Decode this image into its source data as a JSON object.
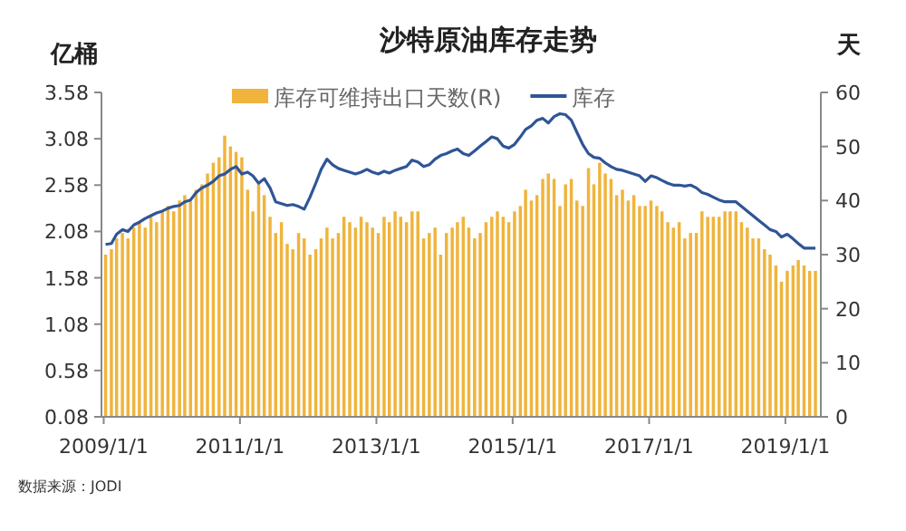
{
  "chart_data": {
    "type": "bar",
    "title": "沙特原油库存走势",
    "ylabel": "亿桶",
    "y2label": "天",
    "x": [
      "2009-01",
      "2009-02",
      "2009-03",
      "2009-04",
      "2009-05",
      "2009-06",
      "2009-07",
      "2009-08",
      "2009-09",
      "2009-10",
      "2009-11",
      "2009-12",
      "2010-01",
      "2010-02",
      "2010-03",
      "2010-04",
      "2010-05",
      "2010-06",
      "2010-07",
      "2010-08",
      "2010-09",
      "2010-10",
      "2010-11",
      "2010-12",
      "2011-01",
      "2011-02",
      "2011-03",
      "2011-04",
      "2011-05",
      "2011-06",
      "2011-07",
      "2011-08",
      "2011-09",
      "2011-10",
      "2011-11",
      "2011-12",
      "2012-01",
      "2012-02",
      "2012-03",
      "2012-04",
      "2012-05",
      "2012-06",
      "2012-07",
      "2012-08",
      "2012-09",
      "2012-10",
      "2012-11",
      "2012-12",
      "2013-01",
      "2013-02",
      "2013-03",
      "2013-04",
      "2013-05",
      "2013-06",
      "2013-07",
      "2013-08",
      "2013-09",
      "2013-10",
      "2013-11",
      "2013-12",
      "2014-01",
      "2014-02",
      "2014-03",
      "2014-04",
      "2014-05",
      "2014-06",
      "2014-07",
      "2014-08",
      "2014-09",
      "2014-10",
      "2014-11",
      "2014-12",
      "2015-01",
      "2015-02",
      "2015-03",
      "2015-04",
      "2015-05",
      "2015-06",
      "2015-07",
      "2015-08",
      "2015-09",
      "2015-10",
      "2015-11",
      "2015-12",
      "2016-01",
      "2016-02",
      "2016-03",
      "2016-04",
      "2016-05",
      "2016-06",
      "2016-07",
      "2016-08",
      "2016-09",
      "2016-10",
      "2016-11",
      "2016-12",
      "2017-01",
      "2017-02",
      "2017-03",
      "2017-04",
      "2017-05",
      "2017-06",
      "2017-07",
      "2017-08",
      "2017-09",
      "2017-10",
      "2017-11",
      "2017-12",
      "2018-01",
      "2018-02",
      "2018-03",
      "2018-04",
      "2018-05",
      "2018-06",
      "2018-07",
      "2018-08",
      "2018-09",
      "2018-10",
      "2018-11",
      "2018-12",
      "2019-01",
      "2019-02",
      "2019-03",
      "2019-04",
      "2019-05",
      "2019-06"
    ],
    "series": [
      {
        "name": "库存可维持出口天数(R)",
        "axis": "y2",
        "color": "#f0b43c",
        "values": [
          30,
          31,
          33,
          34,
          33,
          35,
          36,
          35,
          37,
          36,
          38,
          39,
          38,
          40,
          41,
          40,
          42,
          43,
          45,
          47,
          48,
          52,
          50,
          49,
          48,
          42,
          38,
          43,
          41,
          37,
          34,
          36,
          32,
          31,
          34,
          33,
          30,
          31,
          33,
          35,
          33,
          34,
          37,
          36,
          35,
          37,
          36,
          35,
          34,
          37,
          36,
          38,
          37,
          36,
          38,
          38,
          33,
          34,
          35,
          30,
          34,
          35,
          36,
          37,
          35,
          33,
          34,
          36,
          37,
          38,
          37,
          36,
          38,
          39,
          42,
          40,
          41,
          44,
          45,
          44,
          39,
          43,
          44,
          40,
          39,
          46,
          43,
          47,
          45,
          44,
          41,
          42,
          40,
          41,
          39,
          39,
          40,
          39,
          38,
          36,
          35,
          36,
          33,
          34,
          34,
          38,
          37,
          37,
          37,
          38,
          38,
          38,
          36,
          35,
          33,
          33,
          31,
          30,
          28,
          25,
          27,
          28,
          29,
          28,
          27,
          27
        ]
      },
      {
        "name": "库存",
        "type": "line",
        "color": "#2f5597",
        "values": [
          1.94,
          1.95,
          2.05,
          2.1,
          2.08,
          2.15,
          2.18,
          2.22,
          2.25,
          2.28,
          2.3,
          2.33,
          2.35,
          2.36,
          2.4,
          2.42,
          2.5,
          2.55,
          2.58,
          2.62,
          2.68,
          2.7,
          2.75,
          2.78,
          2.7,
          2.72,
          2.68,
          2.6,
          2.65,
          2.55,
          2.4,
          2.38,
          2.36,
          2.37,
          2.35,
          2.32,
          2.45,
          2.6,
          2.75,
          2.86,
          2.8,
          2.76,
          2.74,
          2.72,
          2.7,
          2.72,
          2.75,
          2.72,
          2.7,
          2.73,
          2.71,
          2.74,
          2.76,
          2.78,
          2.85,
          2.83,
          2.78,
          2.8,
          2.86,
          2.9,
          2.92,
          2.95,
          2.97,
          2.92,
          2.9,
          2.95,
          3.0,
          3.05,
          3.1,
          3.08,
          3.0,
          2.98,
          3.02,
          3.1,
          3.18,
          3.22,
          3.28,
          3.3,
          3.25,
          3.32,
          3.35,
          3.34,
          3.28,
          3.15,
          3.02,
          2.92,
          2.88,
          2.87,
          2.82,
          2.78,
          2.75,
          2.74,
          2.72,
          2.7,
          2.68,
          2.62,
          2.68,
          2.66,
          2.63,
          2.6,
          2.58,
          2.58,
          2.57,
          2.58,
          2.55,
          2.5,
          2.48,
          2.45,
          2.42,
          2.4,
          2.4,
          2.4,
          2.35,
          2.3,
          2.25,
          2.2,
          2.15,
          2.1,
          2.08,
          2.02,
          2.05,
          2.0,
          1.95,
          1.9,
          1.9,
          1.9
        ]
      }
    ],
    "xlim": [
      "2008-12-20",
      "2019-07-10"
    ],
    "xticks": [
      {
        "value": "2009-01-01",
        "label": "2009/1/1"
      },
      {
        "value": "2011-01-01",
        "label": "2011/1/1"
      },
      {
        "value": "2013-01-01",
        "label": "2013/1/1"
      },
      {
        "value": "2015-01-01",
        "label": "2015/1/1"
      },
      {
        "value": "2017-01-01",
        "label": "2017/1/1"
      },
      {
        "value": "2019-01-01",
        "label": "2019/1/1"
      }
    ],
    "ylim": [
      0.08,
      3.58
    ],
    "yticks": [
      0.08,
      0.58,
      1.08,
      1.58,
      2.08,
      2.58,
      3.08,
      3.58
    ],
    "y2lim": [
      0,
      60
    ],
    "y2ticks": [
      0,
      10,
      20,
      30,
      40,
      50,
      60
    ],
    "legend": "top",
    "grid": false,
    "annotations": [
      "数据来源：JODI"
    ]
  }
}
